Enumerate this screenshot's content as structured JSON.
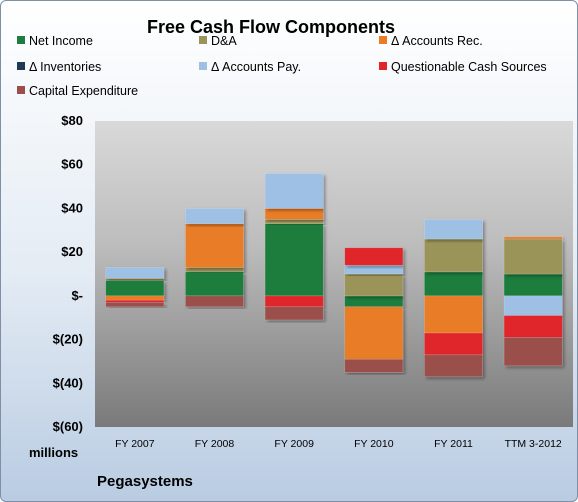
{
  "chart_data": {
    "type": "bar",
    "stacked": true,
    "title": "Free Cash Flow Components",
    "categories": [
      "FY 2007",
      "FY 2008",
      "FY 2009",
      "FY 2010",
      "FY 2011",
      "TTM 3-2012"
    ],
    "y_ticks": [
      "$80",
      "$60",
      "$40",
      "$20",
      "$-",
      "$(20)",
      "$(40)",
      "$(60)"
    ],
    "ylim": [
      -60,
      80
    ],
    "unit_label": "millions",
    "company": "Pegasystems",
    "legend_position": "top",
    "grid": false,
    "series": [
      {
        "name": "Net Income",
        "color": "#1e7d3e",
        "values": [
          7,
          11,
          33,
          -5,
          11,
          10
        ]
      },
      {
        "name": "D&A",
        "color": "#9a9458",
        "values": [
          1,
          2,
          2,
          10,
          15,
          16
        ]
      },
      {
        "name": "Δ Accounts Rec.",
        "color": "#e97c25",
        "values": [
          -2,
          20,
          5,
          -24,
          -17,
          1
        ]
      },
      {
        "name": "Δ Inventories",
        "color": "#1f3a55",
        "values": [
          0,
          0,
          0,
          0,
          0,
          0
        ]
      },
      {
        "name": "Δ Accounts Pay.",
        "color": "#9ec0e4",
        "values": [
          5,
          7,
          16,
          4,
          9,
          -9
        ]
      },
      {
        "name": "Questionable Cash Sources",
        "color": "#e0262b",
        "values": [
          -1,
          0,
          -5,
          8,
          -10,
          -10
        ]
      },
      {
        "name": "Capital Expenditure",
        "color": "#9a4f4b",
        "values": [
          -2,
          -5,
          -6,
          -6,
          -10,
          -13
        ]
      }
    ]
  }
}
